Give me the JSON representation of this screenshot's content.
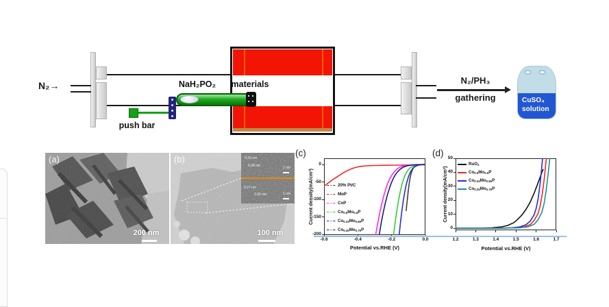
{
  "schematic": {
    "n2_label": "N₂",
    "inlet_arrow": "→",
    "reagent_label": "NaH₂PO₂",
    "materials_label": "materials",
    "push_bar_label": "push bar",
    "outlet_gas_label": "N₂/PH₃",
    "outlet_action_label": "gathering",
    "bottle_label_line1": "CuSO₄",
    "bottle_label_line2": "solution"
  },
  "tem": {
    "panel_a": {
      "label": "(a)",
      "scale_bar_text": "200 nm"
    },
    "panel_b": {
      "label": "(b)",
      "scale_bar_text": "100 nm",
      "inset": {
        "top_annotations": [
          "0.29 nm",
          "0.28 nm"
        ],
        "bottom_annotations": [
          "0.27 nm",
          "0.32 nm"
        ],
        "scale_bar_text": "1 nm"
      }
    }
  },
  "colors": {
    "furnace_red": "#f21404",
    "boat_green": "#22ad22",
    "magnet_navy": "#23237d",
    "bottle_light_blue": "#c3dde8",
    "bottle_dark_blue": "#2257d2",
    "underline_blue": "#9cbfe6",
    "inset_divider_orange": "#e88a00"
  },
  "chart_data": [
    {
      "id": "c",
      "type": "line",
      "panel_label": "(c)",
      "xlabel": "Potential vs.RHE (V)",
      "ylabel": "Current density(mA/cm²)",
      "xlim": [
        -0.6,
        0.0
      ],
      "ylim": [
        -200,
        0
      ],
      "xticks": [
        "-0.6",
        "-0.4",
        "-0.2",
        "0.0"
      ],
      "yticks": [
        "0",
        "-50",
        "-100",
        "-150",
        "-200"
      ],
      "grid": false,
      "legend_position": "center-left",
      "legend_marker": "dash-dot",
      "series": [
        {
          "name": "20% Pt/C",
          "label_html": "20% Pt/C",
          "color": "#3d3d3d",
          "points": [
            [
              -0.114,
              -132
            ],
            [
              -0.11,
              -113
            ],
            [
              -0.106,
              -95
            ],
            [
              -0.102,
              -78
            ],
            [
              -0.098,
              -62
            ],
            [
              -0.094,
              -48
            ],
            [
              -0.089,
              -35
            ],
            [
              -0.084,
              -25
            ],
            [
              -0.078,
              -16
            ],
            [
              -0.071,
              -10
            ],
            [
              -0.063,
              -5.5
            ],
            [
              -0.053,
              -2.5
            ],
            [
              -0.04,
              -1
            ],
            [
              -0.02,
              -0.5
            ],
            [
              0.0,
              0
            ]
          ]
        },
        {
          "name": "MoP",
          "label_html": "MoP",
          "color": "#f82222",
          "points": [
            [
              -0.6,
              -62
            ],
            [
              -0.575,
              -53
            ],
            [
              -0.55,
              -44
            ],
            [
              -0.525,
              -36
            ],
            [
              -0.5,
              -28
            ],
            [
              -0.475,
              -21
            ],
            [
              -0.45,
              -15
            ],
            [
              -0.425,
              -10
            ],
            [
              -0.4,
              -7
            ],
            [
              -0.375,
              -5
            ],
            [
              -0.35,
              -4
            ],
            [
              -0.3,
              -3
            ],
            [
              -0.25,
              -2.5
            ],
            [
              -0.2,
              -2
            ],
            [
              -0.15,
              -2
            ],
            [
              -0.1,
              -1.5
            ],
            [
              -0.05,
              -1
            ],
            [
              0.0,
              -0.5
            ]
          ]
        },
        {
          "name": "CoP",
          "label_html": "CoP",
          "color": "#ff22ff",
          "points": [
            [
              -0.294,
              -200
            ],
            [
              -0.282,
              -168
            ],
            [
              -0.27,
              -138
            ],
            [
              -0.258,
              -112
            ],
            [
              -0.246,
              -89
            ],
            [
              -0.234,
              -69
            ],
            [
              -0.222,
              -53
            ],
            [
              -0.21,
              -40
            ],
            [
              -0.198,
              -30
            ],
            [
              -0.186,
              -22
            ],
            [
              -0.17,
              -14
            ],
            [
              -0.152,
              -8
            ],
            [
              -0.13,
              -4
            ],
            [
              -0.105,
              -2
            ],
            [
              -0.075,
              -1
            ],
            [
              -0.04,
              -0.5
            ],
            [
              0.0,
              0
            ]
          ]
        },
        {
          "name": "Co0.5Mo0.5P",
          "label_html": "Co<sub>0.5</sub>Mo<sub>0.5</sub>P",
          "color": "#33cc33",
          "points": [
            [
              -0.188,
              -200
            ],
            [
              -0.179,
              -166
            ],
            [
              -0.17,
              -135
            ],
            [
              -0.161,
              -108
            ],
            [
              -0.152,
              -85
            ],
            [
              -0.143,
              -65
            ],
            [
              -0.134,
              -49
            ],
            [
              -0.124,
              -35
            ],
            [
              -0.113,
              -24
            ],
            [
              -0.101,
              -15
            ],
            [
              -0.088,
              -9
            ],
            [
              -0.073,
              -5
            ],
            [
              -0.056,
              -2.5
            ],
            [
              -0.035,
              -1
            ],
            [
              0.0,
              0
            ]
          ]
        },
        {
          "name": "Co0.33Mo0.66P",
          "label_html": "Co<sub>0.33</sub>Mo<sub>0.66</sub>P",
          "color": "#2929dd",
          "points": [
            [
              -0.155,
              -200
            ],
            [
              -0.147,
              -164
            ],
            [
              -0.139,
              -132
            ],
            [
              -0.131,
              -104
            ],
            [
              -0.123,
              -81
            ],
            [
              -0.115,
              -61
            ],
            [
              -0.106,
              -44
            ],
            [
              -0.097,
              -31
            ],
            [
              -0.087,
              -20
            ],
            [
              -0.076,
              -12
            ],
            [
              -0.063,
              -6.5
            ],
            [
              -0.048,
              -3
            ],
            [
              -0.03,
              -1
            ],
            [
              0.0,
              0
            ]
          ]
        },
        {
          "name": "Co0.25Mo0.75P",
          "label_html": "Co<sub>0.25</sub>Mo<sub>0.75</sub>P",
          "color": "#1a1a80",
          "points": [
            [
              -0.273,
              -200
            ],
            [
              -0.261,
              -166
            ],
            [
              -0.249,
              -136
            ],
            [
              -0.237,
              -110
            ],
            [
              -0.225,
              -87
            ],
            [
              -0.213,
              -68
            ],
            [
              -0.201,
              -52
            ],
            [
              -0.189,
              -39
            ],
            [
              -0.177,
              -29
            ],
            [
              -0.163,
              -20
            ],
            [
              -0.147,
              -13
            ],
            [
              -0.128,
              -7
            ],
            [
              -0.106,
              -3.5
            ],
            [
              -0.08,
              -1.5
            ],
            [
              -0.045,
              -0.5
            ],
            [
              0.0,
              0
            ]
          ]
        }
      ]
    },
    {
      "id": "d",
      "type": "line",
      "panel_label": "(d)",
      "xlabel": "Potential vs.RHE (V)",
      "ylabel": "Current density(mA/cm²)",
      "xlim": [
        1.2,
        1.7
      ],
      "ylim": [
        0,
        50
      ],
      "xticks": [
        "1.2",
        "1.3",
        "1.4",
        "1.5",
        "1.6",
        "1.7"
      ],
      "yticks": [
        "0",
        "10",
        "20",
        "30",
        "40",
        "50"
      ],
      "grid": false,
      "legend_position": "top-left",
      "legend_marker": "solid",
      "series": [
        {
          "name": "RuO2",
          "label_html": "RuO<sub>2</sub>",
          "color": "#101010",
          "points": [
            [
              1.2,
              0
            ],
            [
              1.3,
              0
            ],
            [
              1.38,
              0.3
            ],
            [
              1.43,
              1
            ],
            [
              1.46,
              2
            ],
            [
              1.49,
              4
            ],
            [
              1.51,
              6.5
            ],
            [
              1.53,
              9.5
            ],
            [
              1.55,
              13.5
            ],
            [
              1.57,
              18.5
            ],
            [
              1.59,
              25
            ],
            [
              1.61,
              32.5
            ],
            [
              1.62,
              36.5
            ],
            [
              1.63,
              40.5
            ],
            [
              1.635,
              42
            ]
          ]
        },
        {
          "name": "Co0.5Mo0.5P",
          "label_html": "Co<sub>0.5</sub>Mo<sub>0.5</sub>P",
          "color": "#f82222",
          "points": [
            [
              1.2,
              0
            ],
            [
              1.42,
              0
            ],
            [
              1.5,
              0.3
            ],
            [
              1.54,
              1
            ],
            [
              1.57,
              2.5
            ],
            [
              1.59,
              5.5
            ],
            [
              1.61,
              10.5
            ],
            [
              1.62,
              16
            ],
            [
              1.63,
              24
            ],
            [
              1.64,
              35
            ],
            [
              1.648,
              46
            ],
            [
              1.651,
              50
            ]
          ]
        },
        {
          "name": "Co0.33Mo0.66P",
          "label_html": "Co<sub>0.33</sub>Mo<sub>0.66</sub>P",
          "color": "#2929dd",
          "points": [
            [
              1.2,
              0
            ],
            [
              1.4,
              0
            ],
            [
              1.48,
              0.3
            ],
            [
              1.52,
              1
            ],
            [
              1.55,
              2.5
            ],
            [
              1.57,
              5
            ],
            [
              1.59,
              9.5
            ],
            [
              1.6,
              14
            ],
            [
              1.61,
              21
            ],
            [
              1.62,
              32
            ],
            [
              1.627,
              42
            ],
            [
              1.632,
              50
            ]
          ]
        },
        {
          "name": "Co0.25Mo0.75P",
          "label_html": "Co<sub>0.25</sub>Mo<sub>0.75</sub>P",
          "color": "#1f9090",
          "points": [
            [
              1.2,
              0
            ],
            [
              1.44,
              0
            ],
            [
              1.52,
              0.3
            ],
            [
              1.56,
              1
            ],
            [
              1.59,
              2.8
            ],
            [
              1.61,
              6
            ],
            [
              1.63,
              12
            ],
            [
              1.64,
              18
            ],
            [
              1.65,
              27
            ],
            [
              1.66,
              39
            ],
            [
              1.668,
              50
            ]
          ]
        }
      ]
    }
  ]
}
